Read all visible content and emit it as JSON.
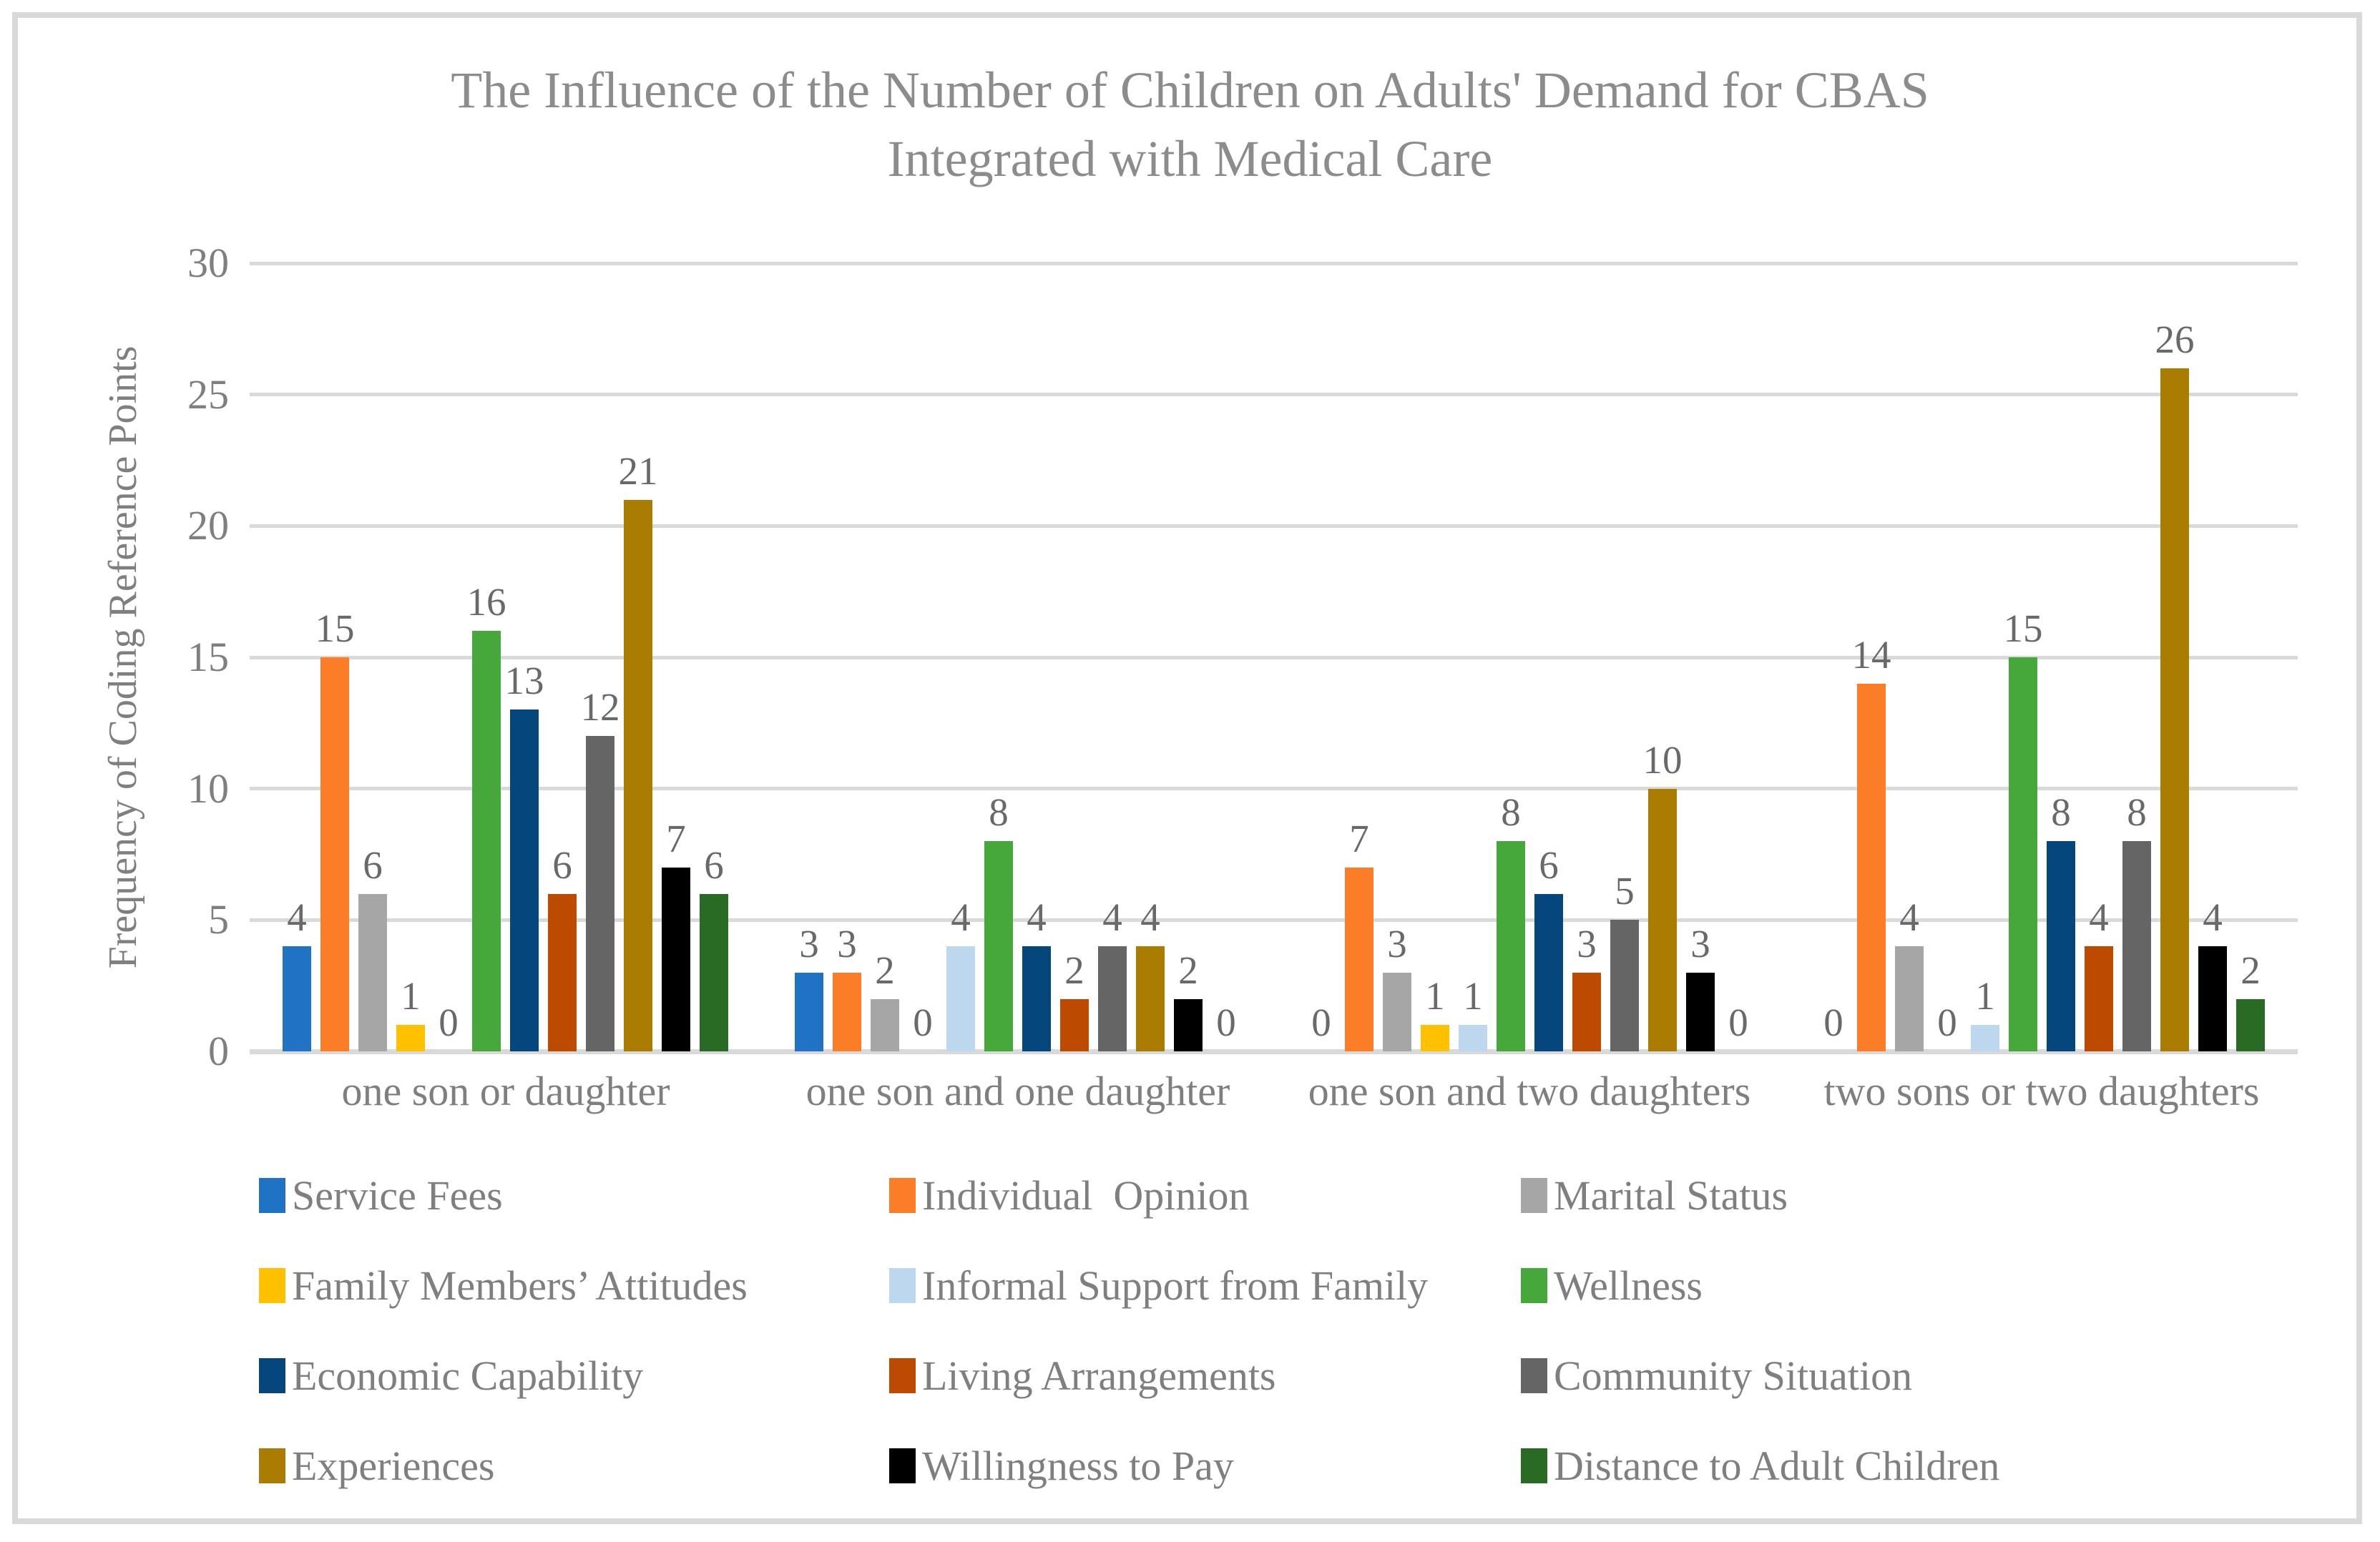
{
  "chart_data": {
    "type": "bar",
    "title": "The Influence of the Number of Children on Adults' Demand for CBAS\nIntegrated with Medical Care",
    "ylabel": "Frequency of Coding Reference Points",
    "xlabel": "",
    "ylim": [
      0,
      30
    ],
    "yticks": [
      0,
      5,
      10,
      15,
      20,
      25,
      30
    ],
    "grid": true,
    "legend_position": "bottom",
    "categories": [
      "one son or daughter",
      "one son and one daughter",
      "one son and two daughters",
      "two sons or two daughters"
    ],
    "series": [
      {
        "name": "Service Fees",
        "color": "#1F72C4",
        "values": [
          4,
          3,
          0,
          0
        ]
      },
      {
        "name": "Individual  Opinion",
        "color": "#FB7D28",
        "values": [
          15,
          3,
          7,
          14
        ]
      },
      {
        "name": "Marital Status",
        "color": "#A6A6A6",
        "values": [
          6,
          2,
          3,
          4
        ]
      },
      {
        "name": "Family Members’ Attitudes",
        "color": "#FFC000",
        "values": [
          1,
          0,
          1,
          0
        ]
      },
      {
        "name": "Informal Support from Family",
        "color": "#BDD7EE",
        "values": [
          0,
          4,
          1,
          1
        ]
      },
      {
        "name": "Wellness",
        "color": "#46A83A",
        "values": [
          16,
          8,
          8,
          15
        ]
      },
      {
        "name": "Economic Capability",
        "color": "#05477D",
        "values": [
          13,
          4,
          6,
          8
        ]
      },
      {
        "name": "Living Arrangements",
        "color": "#BC4A00",
        "values": [
          6,
          2,
          3,
          4
        ]
      },
      {
        "name": "Community Situation",
        "color": "#656565",
        "values": [
          12,
          4,
          5,
          8
        ]
      },
      {
        "name": "Experiences",
        "color": "#AB7C02",
        "values": [
          21,
          4,
          10,
          26
        ]
      },
      {
        "name": "Willingness to Pay",
        "color": "#000000",
        "values": [
          7,
          2,
          3,
          4
        ]
      },
      {
        "name": "Distance to Adult Children",
        "color": "#296B24",
        "values": [
          6,
          0,
          0,
          2
        ]
      }
    ],
    "style": {
      "frame_border_color": "#D9D9D9",
      "gridline_color": "#D9D9D9",
      "title_color": "#8C8C8C",
      "axis_text_color": "#7F7F7F",
      "value_label_color": "#696969"
    }
  }
}
